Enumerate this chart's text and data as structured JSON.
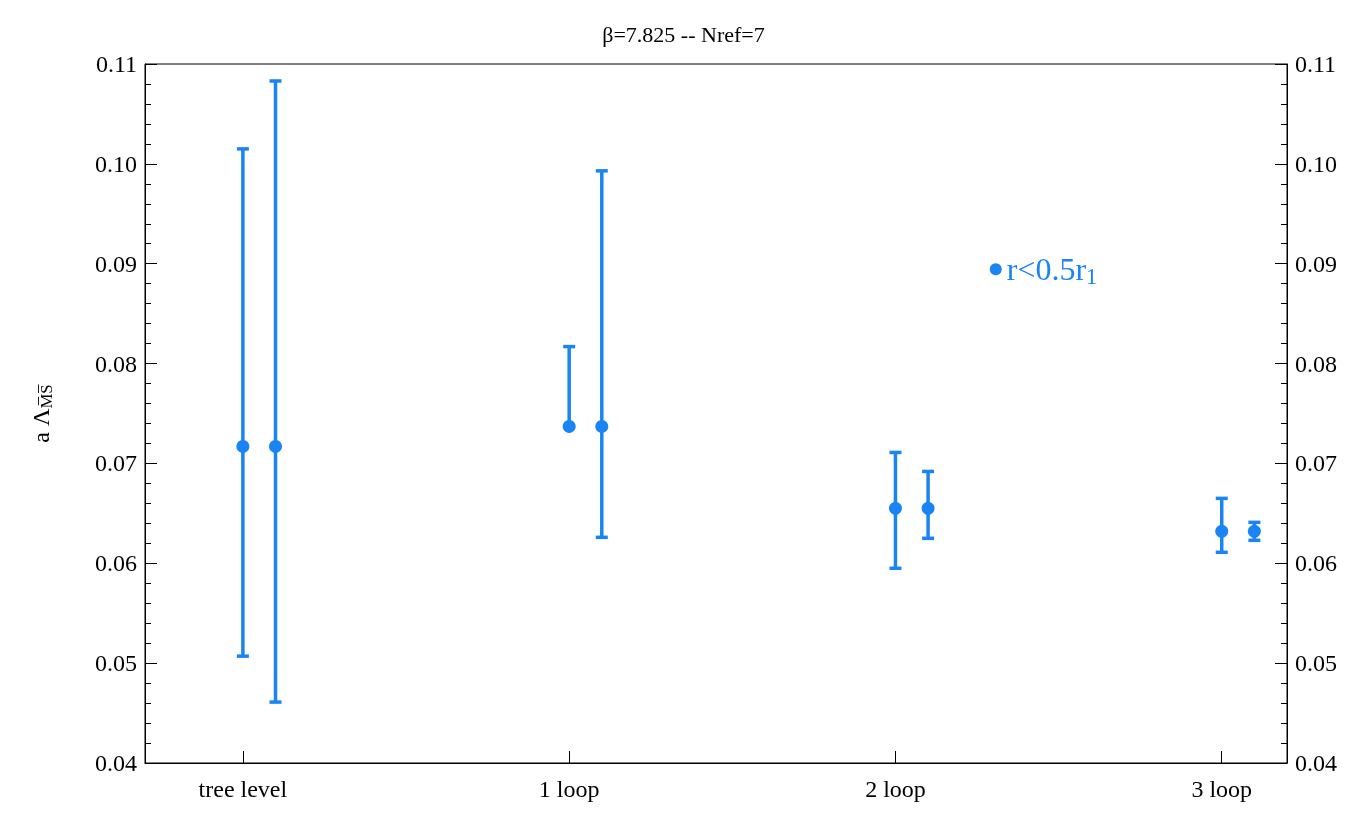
{
  "chart_data": {
    "type": "scatter",
    "title": "β=7.825 -- Nref=7",
    "ylabel": "a Λ$_{M̅S̅}$",
    "x": [
      0,
      0.1,
      1,
      1.1,
      2,
      2.1,
      3,
      3.1
    ],
    "xlim": [
      -0.3,
      3.2
    ],
    "xticks": [
      {
        "value": 0,
        "label": "tree level"
      },
      {
        "value": 1,
        "label": "1 loop"
      },
      {
        "value": 2,
        "label": "2 loop"
      },
      {
        "value": 3,
        "label": "3 loop"
      }
    ],
    "ylim": [
      0.04,
      0.11
    ],
    "yticks": [
      {
        "value": 0.04,
        "label": "0.04"
      },
      {
        "value": 0.05,
        "label": "0.05"
      },
      {
        "value": 0.06,
        "label": "0.06"
      },
      {
        "value": 0.07,
        "label": "0.07"
      },
      {
        "value": 0.08,
        "label": "0.08"
      },
      {
        "value": 0.09,
        "label": "0.09"
      },
      {
        "value": 0.1,
        "label": "0.10"
      },
      {
        "value": 0.11,
        "label": "0.11"
      }
    ],
    "y2lim": [
      0.04,
      0.11
    ],
    "y2ticks": [
      {
        "value": 0.04,
        "label": "0.04"
      },
      {
        "value": 0.05,
        "label": "0.05"
      },
      {
        "value": 0.06,
        "label": "0.06"
      },
      {
        "value": 0.07,
        "label": "0.07"
      },
      {
        "value": 0.08,
        "label": "0.08"
      },
      {
        "value": 0.09,
        "label": "0.09"
      },
      {
        "value": 0.1,
        "label": "0.10"
      },
      {
        "value": 0.11,
        "label": "0.11"
      }
    ],
    "series": [
      {
        "name": "r<0.5r$_{1}$",
        "color": "#1a84f5",
        "values": [
          0.0717,
          0.0717,
          0.0737,
          0.0737,
          0.0655,
          0.0655,
          0.0632,
          0.0632
        ],
        "errors": [
          [
            0.0507,
            0.1015
          ],
          [
            0.0461,
            0.1083
          ],
          [
            0.0737,
            0.0817
          ],
          [
            0.0626,
            0.0993
          ],
          [
            0.0595,
            0.0711
          ],
          [
            0.0625,
            0.0692
          ],
          [
            0.0611,
            0.0665
          ],
          [
            0.0623,
            0.0641
          ]
        ]
      }
    ],
    "legend": "top right",
    "marker": "circle",
    "grid": false
  }
}
